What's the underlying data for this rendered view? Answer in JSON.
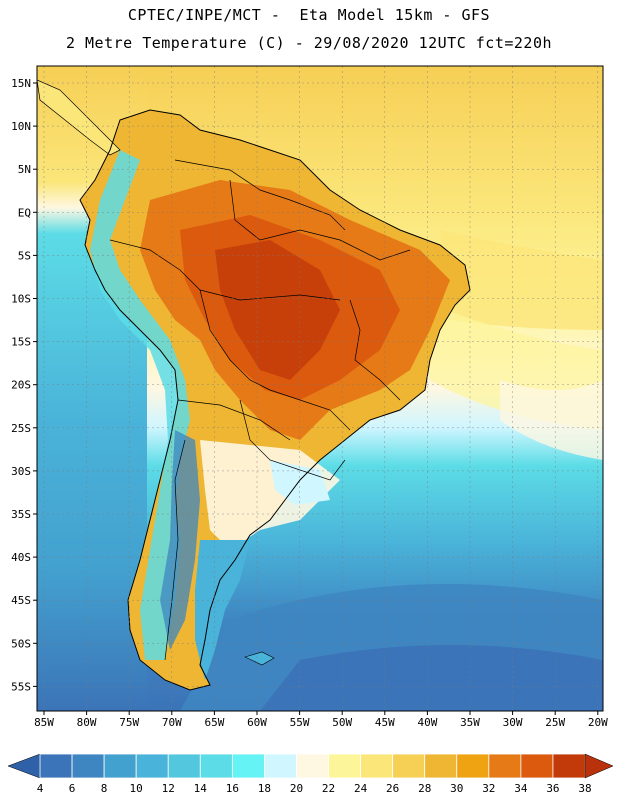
{
  "header": {
    "line1": "CPTEC/INPE/MCT -  Eta Model 15km - GFS",
    "line2": "2 Metre Temperature (C) - 29/08/2020 12UTC fct=220h"
  },
  "map": {
    "lat_labels": [
      "15N",
      "10N",
      "5N",
      "EQ",
      "5S",
      "10S",
      "15S",
      "20S",
      "25S",
      "30S",
      "35S",
      "40S",
      "45S",
      "50S",
      "55S"
    ],
    "lon_labels": [
      "85W",
      "80W",
      "75W",
      "70W",
      "65W",
      "60W",
      "55W",
      "50W",
      "45W",
      "40W",
      "35W",
      "30W",
      "25W",
      "20W"
    ]
  },
  "colorbar": {
    "levels": [
      "4",
      "6",
      "8",
      "10",
      "12",
      "14",
      "16",
      "18",
      "20",
      "22",
      "24",
      "26",
      "28",
      "30",
      "32",
      "34",
      "36",
      "38"
    ],
    "colors": [
      "#3b74b8",
      "#3e86c2",
      "#43a1cf",
      "#4ab3d9",
      "#53c7de",
      "#5cdce6",
      "#66f3f5",
      "#d0f6ff",
      "#fef7e2",
      "#fdf59a",
      "#fbe67a",
      "#f6cf55",
      "#eeb633",
      "#f0a312",
      "#e67a16",
      "#dc5a0e",
      "#c23a0a"
    ],
    "low_color": "#2f61a8",
    "high_color": "#b9320b"
  }
}
